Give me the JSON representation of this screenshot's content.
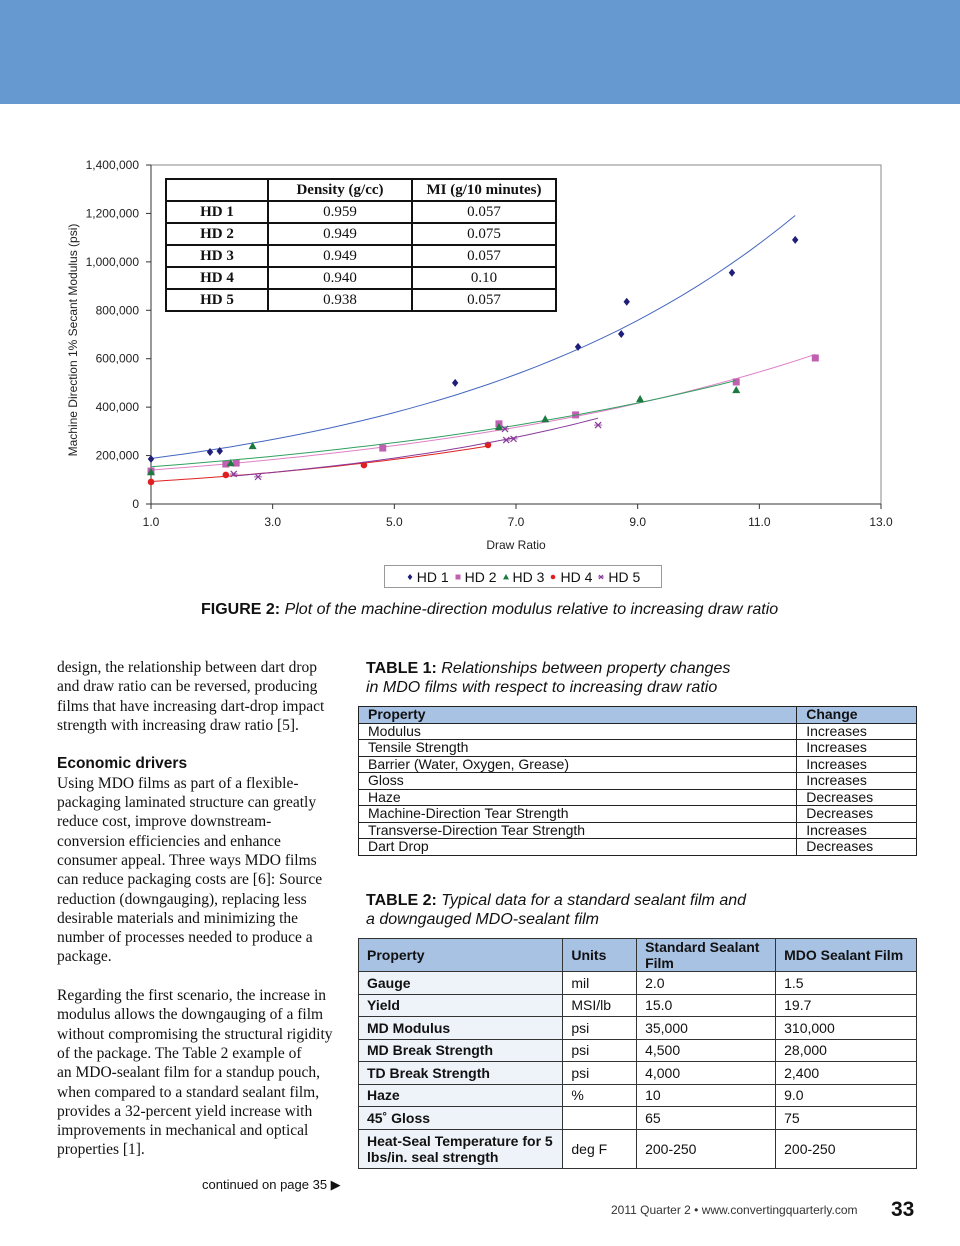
{
  "banner_color": "#6699cf",
  "chart_data": {
    "type": "scatter",
    "xlabel": "Draw Ratio",
    "ylabel": "Machine Direction 1% Secant Modulus (psi)",
    "xlim": [
      1.0,
      13.0
    ],
    "ylim": [
      0,
      1400000
    ],
    "xticks": [
      "1.0",
      "3.0",
      "5.0",
      "7.0",
      "9.0",
      "11.0",
      "13.0"
    ],
    "yticks": [
      "0",
      "200,000",
      "400,000",
      "600,000",
      "800,000",
      "1,000,000",
      "1,200,000",
      "1,400,000"
    ],
    "grid": false,
    "legend_position": "bottom",
    "trendlines": "exponential",
    "series": [
      {
        "name": "HD 1",
        "color": "#1f1f7a",
        "marker": "diamond",
        "line_color": "#4466c0",
        "x": [
          1.0,
          1.97,
          2.13,
          6.0,
          8.02,
          8.73,
          8.82,
          10.55,
          11.59
        ],
        "y": [
          186000,
          215000,
          219000,
          500000,
          649000,
          702000,
          835000,
          955000,
          1091000
        ]
      },
      {
        "name": "HD 2",
        "color": "#c060b0",
        "marker": "square",
        "line_color": "#e080c8",
        "x": [
          1.0,
          2.23,
          2.4,
          4.81,
          6.72,
          7.98,
          10.62,
          11.92
        ],
        "y": [
          136000,
          165000,
          169000,
          231000,
          331000,
          368000,
          504000,
          603000
        ]
      },
      {
        "name": "HD 3",
        "color": "#1a7a40",
        "marker": "triangle",
        "line_color": "#30a060",
        "x": [
          1.0,
          2.31,
          2.67,
          6.72,
          7.48,
          9.04,
          10.62
        ],
        "y": [
          132000,
          169000,
          240000,
          318000,
          351000,
          434000,
          471000
        ]
      },
      {
        "name": "HD 4",
        "color": "#e02020",
        "marker": "circle",
        "line_color": "#e02020",
        "x": [
          1.0,
          2.23,
          4.5,
          6.54
        ],
        "y": [
          91000,
          120000,
          161000,
          244000
        ]
      },
      {
        "name": "HD 5",
        "color": "#8a3a9a",
        "marker": "x",
        "line_color": "#8a3a9a",
        "x": [
          2.36,
          2.76,
          6.82,
          6.84,
          6.96,
          8.35
        ],
        "y": [
          124000,
          112000,
          310000,
          264000,
          269000,
          326000
        ]
      }
    ],
    "inset_table": {
      "headers": [
        "",
        "Density (g/cc)",
        "MI (g/10 minutes)"
      ],
      "rows": [
        [
          "HD 1",
          "0.959",
          "0.057"
        ],
        [
          "HD 2",
          "0.949",
          "0.075"
        ],
        [
          "HD 3",
          "0.949",
          "0.057"
        ],
        [
          "HD 4",
          "0.940",
          "0.10"
        ],
        [
          "HD 5",
          "0.938",
          "0.057"
        ]
      ]
    }
  },
  "figure_caption": {
    "label": "FIGURE 2:",
    "text": "Plot of the machine-direction modulus relative to increasing draw ratio"
  },
  "left_column": {
    "para1": [
      "design, the relationship between dart drop",
      "and draw ratio can be reversed, producing",
      "films that have increasing dart-drop impact",
      "strength with increasing draw ratio [5]."
    ],
    "heading": "Economic drivers",
    "para2": [
      "Using MDO films as part of a flexible-",
      "packaging laminated structure can greatly",
      "reduce cost, improve downstream-",
      "conversion efficiencies and enhance",
      "consumer appeal. Three ways MDO films",
      "can reduce packaging costs are [6]: Source",
      "reduction (downgauging), replacing less",
      "desirable materials and minimizing the",
      "number of processes needed to produce a",
      "package."
    ],
    "para3": [
      "Regarding the first scenario, the increase in",
      "modulus allows the downgauging of a film",
      "without compromising the structural rigidity",
      "of the package. The Table 2 example of",
      "an MDO-sealant film for a standup pouch,",
      "when compared to a standard sealant film,",
      "provides a 32-percent yield increase with",
      "improvements in mechanical and optical",
      "properties [1]."
    ],
    "continued": "continued on page 35 ▶"
  },
  "table1": {
    "caption_label": "TABLE 1:",
    "caption_line1": "Relationships between property changes",
    "caption_line2": "in MDO films with respect to increasing draw ratio",
    "headers": [
      "Property",
      "Change"
    ],
    "rows": [
      [
        "Modulus",
        "Increases"
      ],
      [
        "Tensile Strength",
        "Increases"
      ],
      [
        "Barrier (Water, Oxygen, Grease)",
        "Increases"
      ],
      [
        "Gloss",
        "Increases"
      ],
      [
        "Haze",
        "Decreases"
      ],
      [
        "Machine-Direction Tear Strength",
        "Decreases"
      ],
      [
        "Transverse-Direction Tear Strength",
        "Increases"
      ],
      [
        "Dart Drop",
        "Decreases"
      ]
    ]
  },
  "table2": {
    "caption_label": "TABLE 2:",
    "caption_line1": "Typical data for a standard sealant film and",
    "caption_line2": "a downgauged MDO-sealant film",
    "headers": [
      "Property",
      "Units",
      "Standard Sealant Film",
      "MDO Sealant Film"
    ],
    "rows": [
      [
        "Gauge",
        "mil",
        "2.0",
        "1.5"
      ],
      [
        "Yield",
        "MSI/lb",
        "15.0",
        "19.7"
      ],
      [
        "MD Modulus",
        "psi",
        "35,000",
        "310,000"
      ],
      [
        "MD Break Strength",
        "psi",
        "4,500",
        "28,000"
      ],
      [
        "TD Break Strength",
        "psi",
        "4,000",
        "2,400"
      ],
      [
        "Haze",
        "%",
        "10",
        "9.0"
      ],
      [
        "45˚ Gloss",
        "",
        "65",
        "75"
      ],
      [
        "Heat-Seal Temperature for 5 lbs/in. seal strength",
        "deg F",
        "200-250",
        "200-250"
      ]
    ]
  },
  "footer": {
    "text": "2011 Quarter 2  •  www.convertingquarterly.com",
    "page_number": "33"
  }
}
